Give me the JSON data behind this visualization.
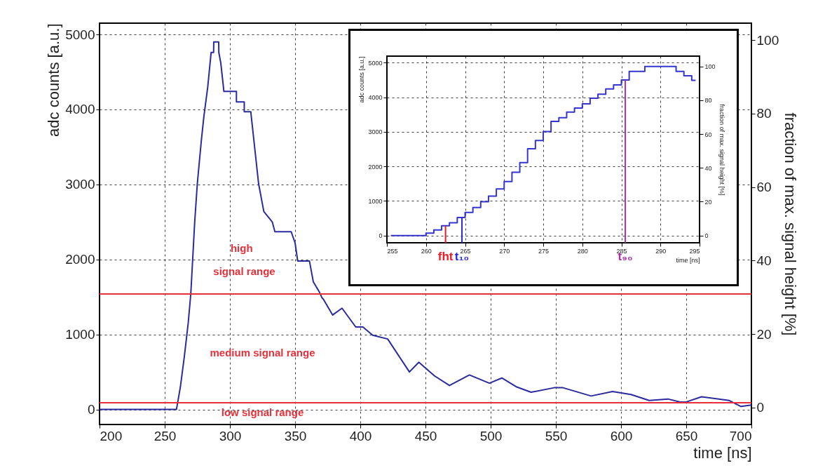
{
  "chart_data": [
    {
      "type": "line",
      "xlabel": "time [ns]",
      "ylabel": "adc counts [a.u.]",
      "y2label": "fraction of max. signal height [%]",
      "x": [
        200,
        259,
        262,
        265,
        268,
        270,
        273,
        275,
        278,
        280,
        283,
        285.6,
        287.5,
        287.6,
        291.4,
        291.5,
        293,
        295.4,
        305,
        305,
        311,
        311,
        316,
        322,
        326,
        332.5,
        334.5,
        347,
        350,
        352,
        361,
        364,
        368.8,
        370.6,
        371.7,
        378.8,
        386,
        396.5,
        402,
        409.5,
        421,
        437.7,
        444.9,
        456.8,
        468.4,
        483.7,
        499,
        508.6,
        520,
        531,
        548.6,
        555.5,
        577,
        593.5,
        607.6,
        621.6,
        636,
        645.3,
        650,
        661.7,
        683,
        692,
        700
      ],
      "series": [
        {
          "color": "#2b2b9e",
          "values": [
            0,
            0,
            300,
            700,
            1150,
            1540,
            2500,
            3010,
            3570,
            3900,
            4300,
            4760,
            4760,
            4900,
            4900,
            4760,
            4620,
            4240,
            4240,
            4100,
            4100,
            3970,
            3970,
            3010,
            2640,
            2500,
            2370,
            2370,
            2220,
            1980,
            1980,
            1700,
            1560,
            1490,
            1470,
            1260,
            1350,
            1100,
            1100,
            990,
            940,
            500,
            630,
            450,
            320,
            460,
            350,
            420,
            300,
            230,
            290,
            290,
            180,
            240,
            200,
            120,
            140,
            100,
            100,
            170,
            120,
            40,
            60
          ]
        }
      ],
      "xlim": [
        200,
        700
      ],
      "xticks": [
        200,
        250,
        300,
        350,
        400,
        450,
        500,
        550,
        600,
        650,
        700
      ],
      "ylim": [
        -200,
        5150
      ],
      "yticks": [
        0,
        1000,
        2000,
        3000,
        4000,
        5000
      ],
      "y2lim": [
        -4.6,
        104.6
      ],
      "y2ticks": [
        0,
        20,
        40,
        60,
        80,
        100
      ],
      "grid": true,
      "ref_lines": [
        {
          "axis": "y",
          "value": 1540,
          "color": "#e8303a"
        },
        {
          "axis": "y",
          "value": 90,
          "color": "#e8303a"
        }
      ],
      "annotations": [
        "high",
        "signal range",
        "medium signal range",
        "low signal range"
      ]
    },
    {
      "type": "step",
      "xlabel": "time [ns]",
      "ylabel": "adc counts [a.u.]",
      "y2label": "fraction of max. signal height [%]",
      "x": [
        255.5,
        256.5,
        257.5,
        258.5,
        259.5,
        260.5,
        261.5,
        262.5,
        263.5,
        264.5,
        265.5,
        266.5,
        267.5,
        268.5,
        269.5,
        270.5,
        271.5,
        272.5,
        273.5,
        274.5,
        275.5,
        276.5,
        277.5,
        278.5,
        279.5,
        280.5,
        281.5,
        282.5,
        283.5,
        284.5,
        285.5,
        286.5,
        287.5,
        288.5,
        289.5,
        290.5,
        291.5,
        292.5,
        293.5,
        294.5
      ],
      "series": [
        {
          "color": "#3535d0",
          "values": [
            0,
            0,
            0,
            0,
            0,
            70,
            160,
            280,
            370,
            520,
            670,
            810,
            980,
            1140,
            1350,
            1560,
            1830,
            2110,
            2510,
            2750,
            3010,
            3300,
            3410,
            3570,
            3690,
            3810,
            3970,
            4090,
            4240,
            4360,
            4500,
            4750,
            4750,
            4890,
            4890,
            4890,
            4890,
            4750,
            4620,
            4490
          ]
        }
      ],
      "xlim": [
        255,
        295
      ],
      "xticks": [
        255,
        260,
        265,
        270,
        275,
        280,
        285,
        290,
        295
      ],
      "ylim": [
        -210,
        5190
      ],
      "yticks": [
        0,
        1000,
        2000,
        3000,
        4000,
        5000
      ],
      "y2lim": [
        -4.3,
        106.1
      ],
      "y2ticks": [
        0,
        20,
        40,
        60,
        80,
        100
      ],
      "grid": true,
      "ref_lines": [
        {
          "axis": "x",
          "value": 262.5,
          "label": "fht",
          "color": "#ee1c25"
        },
        {
          "axis": "x",
          "value": 264.6,
          "label": "t₁₀",
          "color": "#2a2ae0"
        },
        {
          "axis": "x",
          "value": 285.5,
          "label": "t₉₀",
          "color": "#b02cb0"
        }
      ]
    }
  ]
}
